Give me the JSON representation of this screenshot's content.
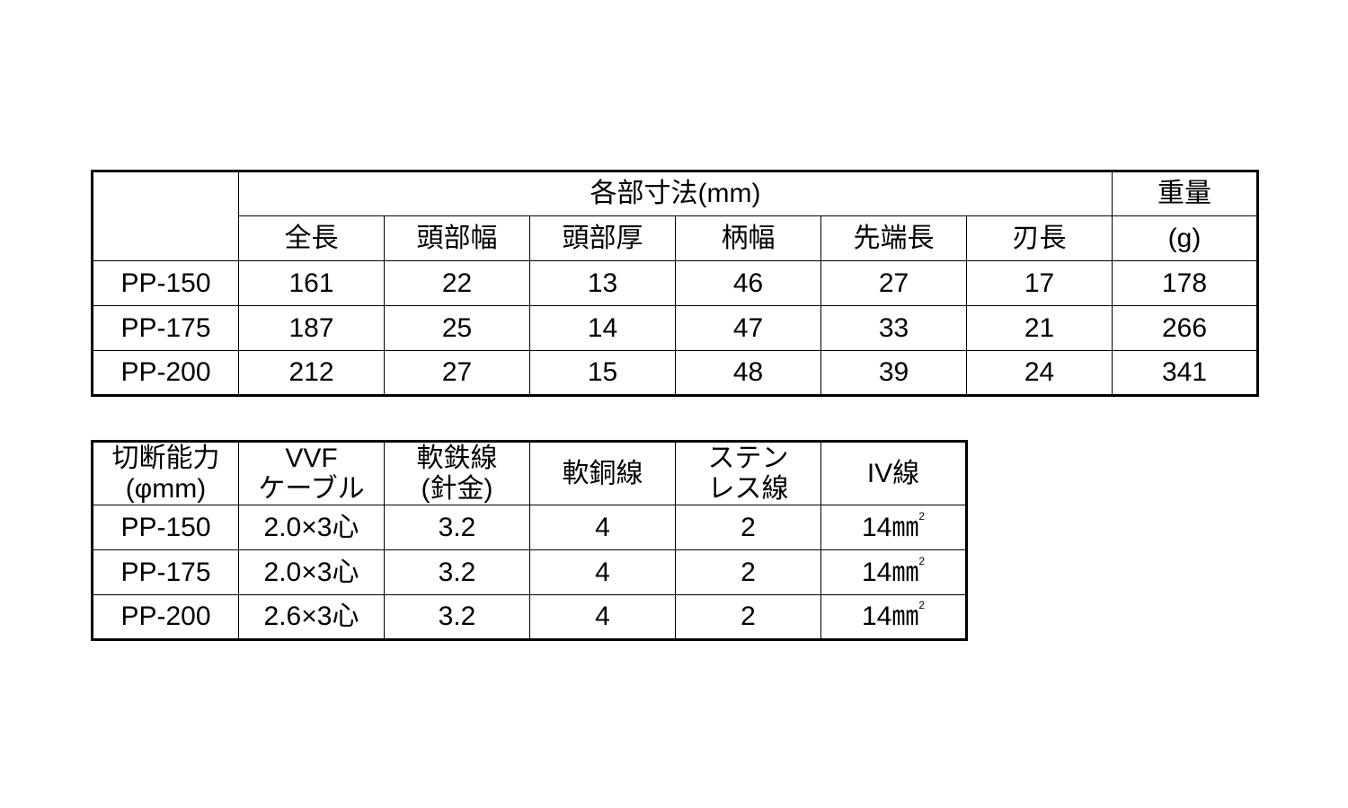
{
  "dimensions_table": {
    "group_header": "各部寸法(mm)",
    "weight_header": "重量",
    "weight_unit": "(g)",
    "columns": [
      "全長",
      "頭部幅",
      "頭部厚",
      "柄幅",
      "先端長",
      "刃長"
    ],
    "rows": [
      {
        "model": "PP-150",
        "values": [
          "161",
          "22",
          "13",
          "46",
          "27",
          "17"
        ],
        "weight": "178"
      },
      {
        "model": "PP-175",
        "values": [
          "187",
          "25",
          "14",
          "47",
          "33",
          "21"
        ],
        "weight": "266"
      },
      {
        "model": "PP-200",
        "values": [
          "212",
          "27",
          "15",
          "48",
          "39",
          "24"
        ],
        "weight": "341"
      }
    ]
  },
  "cutting_table": {
    "headers": [
      "切断能力\n(φmm)",
      "VVF\nケーブル",
      "軟鉄線\n(針金)",
      "軟銅線",
      "ステン\nレス線",
      "IV線"
    ],
    "unit_sup": "2",
    "rows": [
      {
        "model": "PP-150",
        "values": [
          "2.0×3心",
          "3.2",
          "4",
          "2",
          "14㎜"
        ]
      },
      {
        "model": "PP-175",
        "values": [
          "2.0×3心",
          "3.2",
          "4",
          "2",
          "14㎜"
        ]
      },
      {
        "model": "PP-200",
        "values": [
          "2.6×3心",
          "3.2",
          "4",
          "2",
          "14㎜"
        ]
      }
    ]
  }
}
